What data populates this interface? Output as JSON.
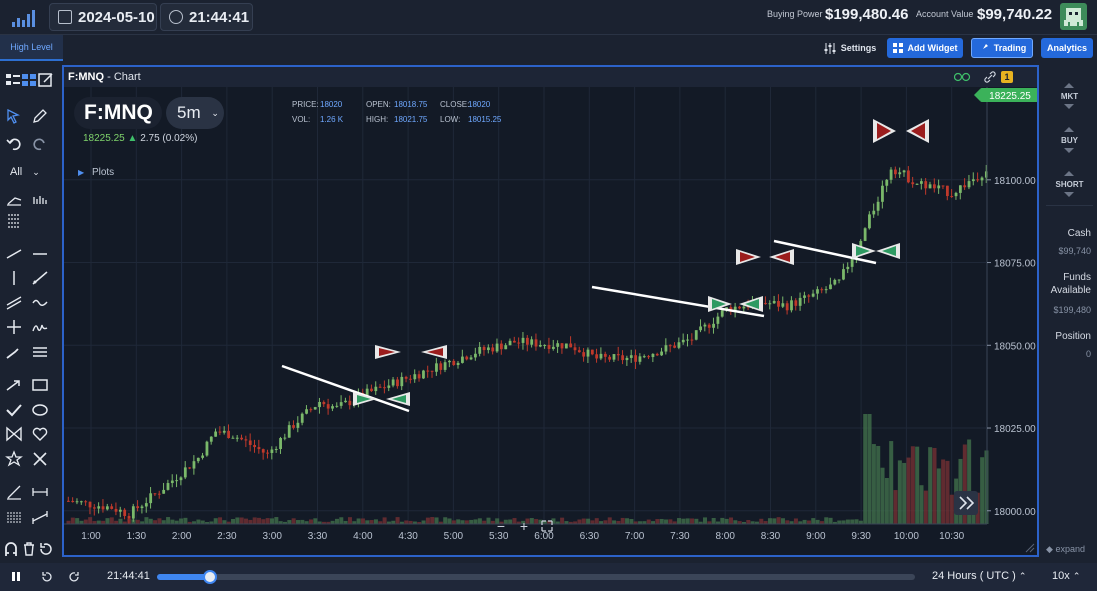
{
  "header": {
    "date": "2024-05-10",
    "time": "21:44:41",
    "buying_power_label": "Buying Power",
    "buying_power_value": "$199,480.46",
    "account_value_label": "Account Value",
    "account_value_value": "$99,740.22"
  },
  "toolbar": {
    "high_level_tab": "High Level",
    "settings_label": "Settings",
    "add_widget_label": "Add Widget",
    "trading_label": "Trading",
    "analytics_label": "Analytics"
  },
  "left_tools": {
    "filter_label": "All"
  },
  "chart_window": {
    "symbol": "F:MNQ",
    "title_suffix": " - Chart",
    "badge_count": "1",
    "interval": "5m",
    "last_price": "18225.25",
    "change": "2.75 (0.02%)",
    "plots_label": "Plots",
    "ohlc": {
      "price_label": "PRICE:",
      "price": "18020",
      "open_label": "OPEN:",
      "open": "18018.75",
      "close_label": "CLOSE:",
      "close": "18020",
      "vol_label": "VOL:",
      "vol": "1.26 K",
      "high_label": "HIGH:",
      "high": "18021.75",
      "low_label": "LOW:",
      "low": "18015.25"
    }
  },
  "chart_data": {
    "type": "candlestick",
    "y_ticks": [
      "18100.00",
      "18075.00",
      "18050.00",
      "18025.00",
      "18000.00"
    ],
    "x_ticks": [
      "1:00",
      "1:30",
      "2:00",
      "2:30",
      "3:00",
      "3:30",
      "4:00",
      "4:30",
      "5:00",
      "5:30",
      "6:00",
      "6:30",
      "7:00",
      "7:30",
      "8:00",
      "8:30",
      "9:00",
      "9:30",
      "10:00",
      "10:30"
    ],
    "ylim": [
      17996,
      18122
    ],
    "price_tag": "18225.25",
    "grid": true,
    "candle_colors": {
      "up": "#7ab86a",
      "down": "#c0392b"
    }
  },
  "right_panel": {
    "mkt_label": "MKT",
    "buy_label": "BUY",
    "short_label": "SHORT",
    "cash_label": "Cash",
    "cash_value": "$99,740",
    "funds_label": "Funds Available",
    "funds_value": "$199,480",
    "position_label": "Position",
    "position_value": "0",
    "expand_label": "expand"
  },
  "playback": {
    "time": "21:44:41",
    "progress": 0.07,
    "timezone_label": "24 Hours ( UTC )",
    "speed_label": "10x"
  }
}
